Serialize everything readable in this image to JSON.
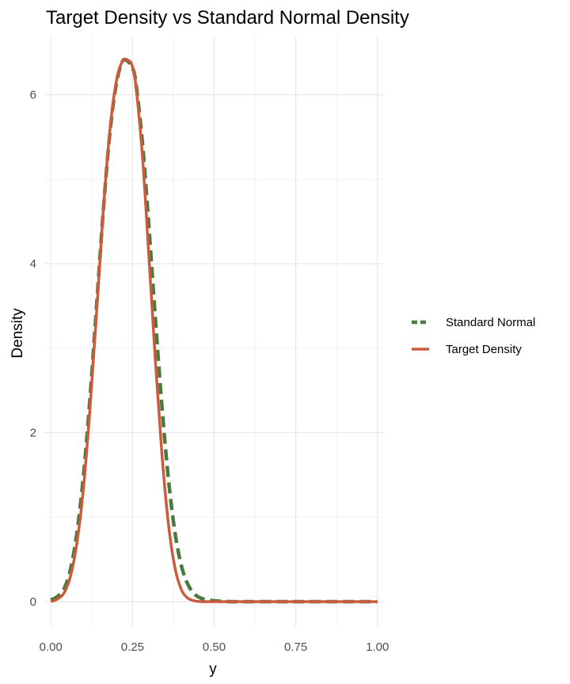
{
  "chart_data": {
    "type": "line",
    "title": "Target Density vs Standard Normal Density",
    "xlabel": "y",
    "ylabel": "Density",
    "xlim": [
      -0.02,
      1.02
    ],
    "ylim": [
      -0.3,
      6.7
    ],
    "x_ticks": [
      0,
      0.25,
      0.5,
      0.75,
      1
    ],
    "x_tick_labels": [
      "0.00",
      "0.25",
      "0.50",
      "0.75",
      "1.00"
    ],
    "y_ticks": [
      0,
      2,
      4,
      6
    ],
    "y_tick_labels": [
      "0",
      "2",
      "4",
      "6"
    ],
    "grid": true,
    "legend_position": "right",
    "series": [
      {
        "name": "Standard Normal",
        "color": "#4a7a3d",
        "style": "dashed",
        "x": [
          0,
          0.02,
          0.04,
          0.06,
          0.08,
          0.1,
          0.12,
          0.14,
          0.16,
          0.18,
          0.2,
          0.22,
          0.24,
          0.25,
          0.26,
          0.28,
          0.3,
          0.32,
          0.34,
          0.36,
          0.38,
          0.4,
          0.42,
          0.44,
          0.46,
          0.48,
          0.5,
          0.55,
          0.6,
          0.7,
          0.8,
          0.9,
          1.0
        ],
        "values": [
          0.02,
          0.06,
          0.15,
          0.38,
          0.82,
          1.5,
          2.42,
          3.5,
          4.6,
          5.52,
          6.12,
          6.4,
          6.38,
          6.32,
          6.15,
          5.45,
          4.45,
          3.35,
          2.32,
          1.45,
          0.82,
          0.42,
          0.2,
          0.09,
          0.04,
          0.02,
          0.01,
          0.0,
          0.0,
          0.0,
          0.0,
          0.0,
          0.0
        ]
      },
      {
        "name": "Target Density",
        "color": "#cc5a3d",
        "style": "solid",
        "x": [
          0,
          0.02,
          0.04,
          0.06,
          0.08,
          0.1,
          0.12,
          0.14,
          0.16,
          0.18,
          0.2,
          0.22,
          0.24,
          0.25,
          0.26,
          0.28,
          0.3,
          0.32,
          0.34,
          0.36,
          0.38,
          0.4,
          0.42,
          0.44,
          0.46,
          0.48,
          0.5,
          0.55,
          0.6,
          0.7,
          0.8,
          0.9,
          1.0
        ],
        "values": [
          0.0,
          0.03,
          0.1,
          0.3,
          0.7,
          1.35,
          2.3,
          3.42,
          4.6,
          5.55,
          6.15,
          6.4,
          6.4,
          6.33,
          6.12,
          5.3,
          4.1,
          2.85,
          1.75,
          0.92,
          0.4,
          0.14,
          0.04,
          0.01,
          0.0,
          0.0,
          0.0,
          0.0,
          0.0,
          0.0,
          0.0,
          0.0,
          0.0
        ]
      }
    ]
  }
}
